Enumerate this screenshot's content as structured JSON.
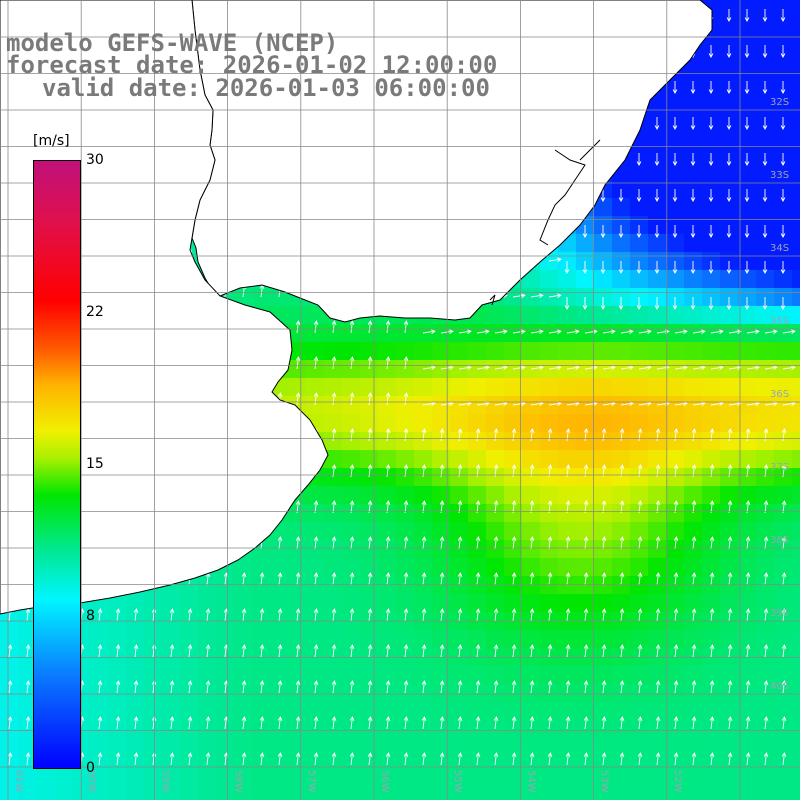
{
  "title": {
    "model": "modelo GEFS-WAVE (NCEP)",
    "forecast": "forecast date: 2026-01-02 12:00:00",
    "valid": "valid date: 2026-01-03 06:00:00"
  },
  "colorbar": {
    "units": "[m/s]",
    "ticks": [
      "30",
      "22",
      "15",
      "8",
      "0"
    ],
    "colors": [
      "#0000ff",
      "#00f5ff",
      "#00e600",
      "#f0f000",
      "#ff5a00",
      "#ff0000",
      "#c0107a"
    ]
  },
  "map": {
    "variable": "wind speed with direction arrows",
    "lat_labels": [
      "32S",
      "33S",
      "34S",
      "35S",
      "36S",
      "37S",
      "38S",
      "39S",
      "40S"
    ],
    "lon_labels": [
      "61W",
      "60W",
      "59W",
      "58W",
      "57W",
      "56W",
      "55W",
      "54W",
      "53W",
      "52W"
    ],
    "land_color": "#ffffff",
    "grid_color": "#888888",
    "coast_color": "#000000"
  }
}
